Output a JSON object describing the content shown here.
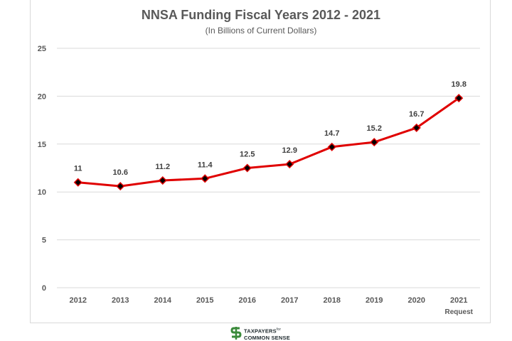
{
  "chart_data": {
    "type": "line",
    "title": "NNSA Funding Fiscal Years 2012 - 2021",
    "subtitle": "(In Billions of Current Dollars)",
    "categories": [
      "2012",
      "2013",
      "2014",
      "2015",
      "2016",
      "2017",
      "2018",
      "2019",
      "2020",
      "2021"
    ],
    "category_sublabels": [
      "",
      "",
      "",
      "",
      "",
      "",
      "",
      "",
      "",
      "Request"
    ],
    "values": [
      11,
      10.6,
      11.2,
      11.4,
      12.5,
      12.9,
      14.7,
      15.2,
      16.7,
      19.8
    ],
    "data_labels": [
      "11",
      "10.6",
      "11.2",
      "11.4",
      "12.5",
      "12.9",
      "14.7",
      "15.2",
      "16.7",
      "19.8"
    ],
    "ylim": [
      0,
      25
    ],
    "yticks": [
      0,
      5,
      10,
      15,
      20,
      25
    ],
    "grid": true,
    "legend": "none",
    "colors": {
      "line": "#e00000",
      "marker": "#000000",
      "grid": "#d9d9d9",
      "text": "#595959"
    }
  },
  "logo": {
    "line1": "TAXPAYERS",
    "line1_small": "for",
    "line2": "COMMON SENSE",
    "colors": {
      "mark": "#3a8a3a",
      "text": "#1f2a2e"
    }
  }
}
